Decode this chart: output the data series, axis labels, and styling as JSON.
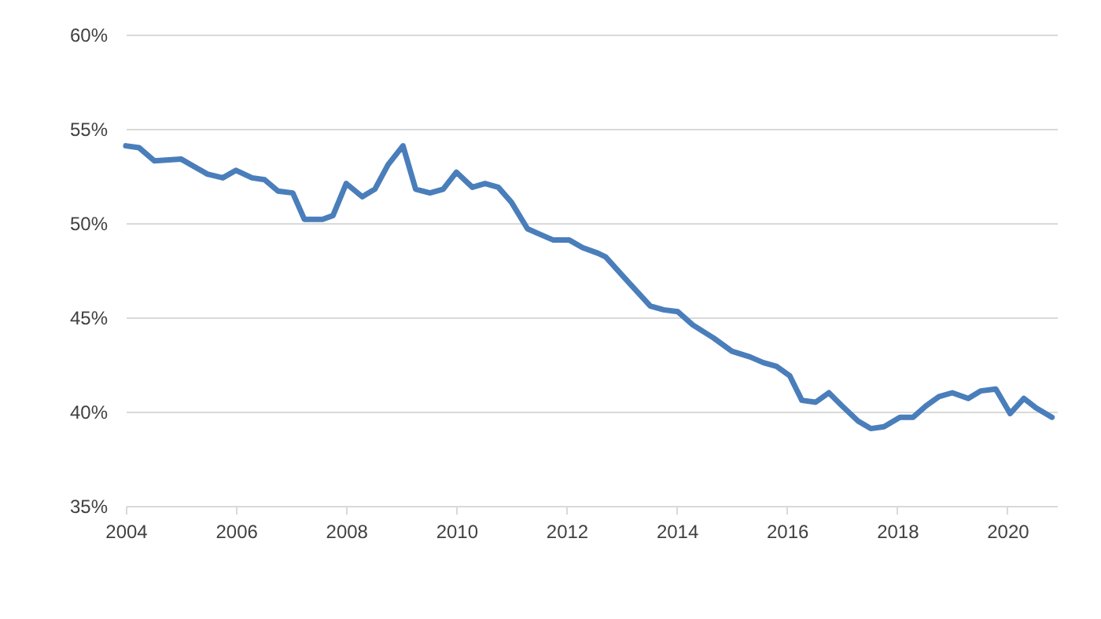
{
  "chart_data": {
    "type": "line",
    "x": [
      2004.0,
      2004.24,
      2004.52,
      2005.0,
      2005.48,
      2005.76,
      2006.0,
      2006.29,
      2006.52,
      2006.76,
      2007.03,
      2007.24,
      2007.57,
      2007.76,
      2008.0,
      2008.29,
      2008.52,
      2008.76,
      2009.03,
      2009.26,
      2009.52,
      2009.76,
      2010.0,
      2010.29,
      2010.52,
      2010.76,
      2011.0,
      2011.29,
      2011.52,
      2011.76,
      2012.05,
      2012.29,
      2012.57,
      2012.71,
      2013.05,
      2013.52,
      2013.76,
      2014.02,
      2014.29,
      2014.67,
      2015.0,
      2015.33,
      2015.57,
      2015.81,
      2016.05,
      2016.27,
      2016.52,
      2016.76,
      2017.0,
      2017.29,
      2017.52,
      2017.76,
      2018.05,
      2018.29,
      2018.52,
      2018.76,
      2019.0,
      2019.29,
      2019.52,
      2019.79,
      2020.05,
      2020.3,
      2020.52,
      2020.81
    ],
    "series": [
      {
        "color": "#4a7ebb",
        "values": [
          54.1,
          54.0,
          53.3,
          53.4,
          52.6,
          52.4,
          52.8,
          52.4,
          52.3,
          51.7,
          51.6,
          50.2,
          50.2,
          50.4,
          52.1,
          51.4,
          51.8,
          53.1,
          54.1,
          51.8,
          51.6,
          51.8,
          52.7,
          51.9,
          52.1,
          51.9,
          51.1,
          49.7,
          49.4,
          49.1,
          49.1,
          48.7,
          48.4,
          48.2,
          47.1,
          45.6,
          45.4,
          45.3,
          44.6,
          43.9,
          43.2,
          42.9,
          42.6,
          42.4,
          41.9,
          40.6,
          40.5,
          41.0,
          40.3,
          39.5,
          39.1,
          39.2,
          39.7,
          39.7,
          40.3,
          40.8,
          41.0,
          40.7,
          41.1,
          41.2,
          39.9,
          40.7,
          40.2,
          39.7
        ]
      }
    ],
    "xlim": [
      2004,
      2020.9
    ],
    "xticks": [
      2004,
      2006,
      2008,
      2010,
      2012,
      2014,
      2016,
      2018,
      2020
    ],
    "ylim": [
      35,
      60
    ],
    "yticks": [
      {
        "value": 35,
        "label": "35%"
      },
      {
        "value": 40,
        "label": "40%"
      },
      {
        "value": 45,
        "label": "45%"
      },
      {
        "value": 50,
        "label": "50%"
      },
      {
        "value": 55,
        "label": "55%"
      },
      {
        "value": 60,
        "label": "60%"
      }
    ],
    "grid": "y"
  }
}
